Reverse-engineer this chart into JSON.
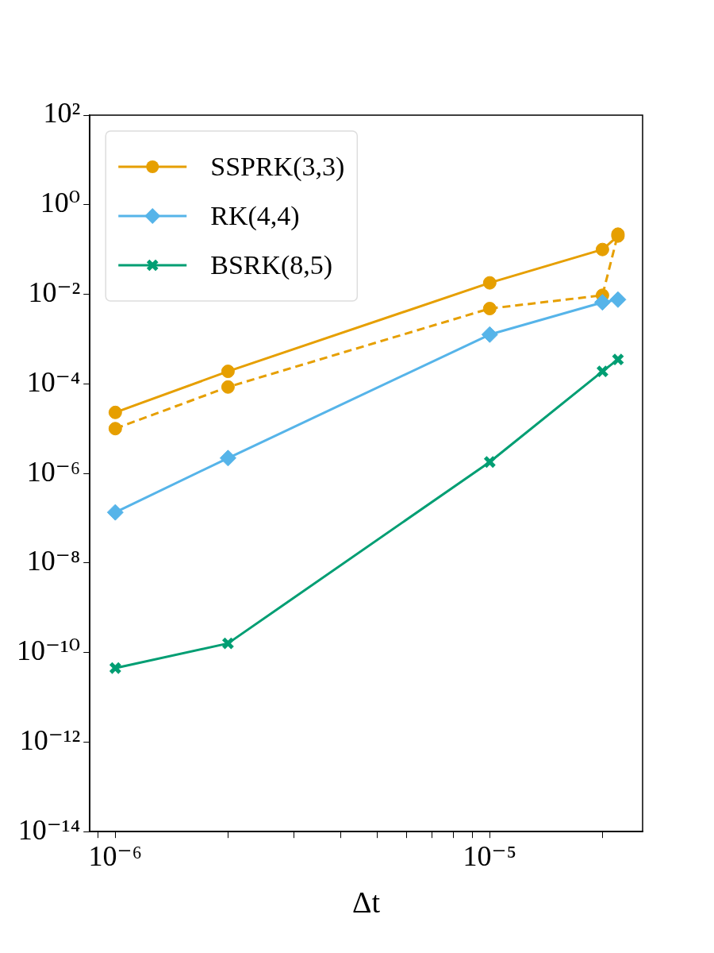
{
  "chart_data": {
    "type": "line",
    "xlabel": "Δt",
    "log": "xy",
    "grid": false,
    "legend": "top left",
    "x": [
      1e-06,
      2e-06,
      1e-05,
      2e-05,
      2.2e-05
    ],
    "xlim": [
      8.55e-07,
      2.56e-05
    ],
    "xticks": [
      {
        "value": 9e-07,
        "label": null
      },
      {
        "value": 1e-06,
        "label": "10⁻⁶"
      },
      {
        "value": 2e-06,
        "label": null
      },
      {
        "value": 3e-06,
        "label": null
      },
      {
        "value": 4e-06,
        "label": null
      },
      {
        "value": 5e-06,
        "label": null
      },
      {
        "value": 6e-06,
        "label": null
      },
      {
        "value": 7e-06,
        "label": null
      },
      {
        "value": 8e-06,
        "label": null
      },
      {
        "value": 9e-06,
        "label": null
      },
      {
        "value": 1e-05,
        "label": "10⁻⁵"
      },
      {
        "value": 2e-05,
        "label": null
      }
    ],
    "ylim": [
      1e-14,
      100
    ],
    "yticks": [
      {
        "value": 100,
        "label": "10²"
      },
      {
        "value": 1,
        "label": "10⁰"
      },
      {
        "value": 0.01,
        "label": "10⁻²"
      },
      {
        "value": 0.0001,
        "label": "10⁻⁴"
      },
      {
        "value": 1e-06,
        "label": "10⁻⁶"
      },
      {
        "value": 1e-08,
        "label": "10⁻⁸"
      },
      {
        "value": 1e-10,
        "label": "10⁻¹⁰"
      },
      {
        "value": 1e-12,
        "label": "10⁻¹²"
      },
      {
        "value": 1e-14,
        "label": "10⁻¹⁴"
      }
    ],
    "series": [
      {
        "name": "SSPRK(3,3)",
        "color": "#e69f00",
        "marker": "circle",
        "line_style": "solid",
        "values": [
          2.3e-05,
          0.00019,
          0.018,
          0.1,
          0.2
        ]
      },
      {
        "name": "RK(4,4)",
        "color": "#56b4e9",
        "marker": "diamond",
        "line_style": "solid",
        "values": [
          1.35e-07,
          2.2e-06,
          0.00126,
          0.0066,
          0.0076
        ]
      },
      {
        "name": "BSRK(8,5)",
        "color": "#009e73",
        "marker": "cross",
        "line_style": "solid",
        "values": [
          4.5e-11,
          1.6e-10,
          1.8e-06,
          0.00019,
          0.00035
        ]
      },
      {
        "color": "#e69f00",
        "marker": "circle",
        "line_style": "dashed",
        "values": [
          1e-05,
          8.5e-05,
          0.0048,
          0.0095,
          0.22
        ]
      }
    ]
  }
}
